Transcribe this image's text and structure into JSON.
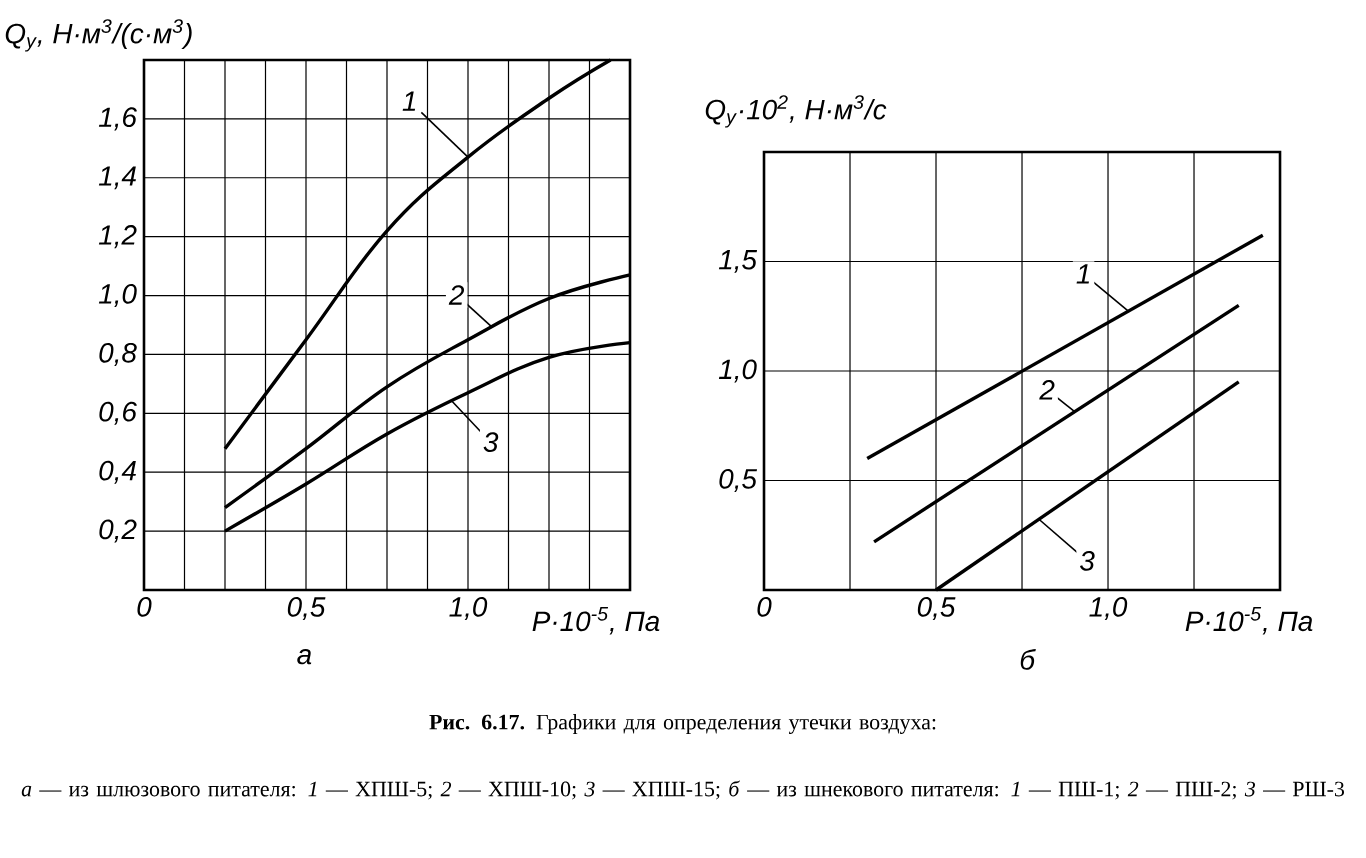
{
  "chart_data": [
    {
      "type": "line",
      "ylabel": "Q$_{у}$, Н·м$^{3}$/(с·м$^{3}$)",
      "xlabel": "P·10$^{-5}$, Па",
      "subtitle": "а",
      "xlim": [
        0,
        1.5
      ],
      "ylim": [
        0,
        1.8
      ],
      "grid": true,
      "xticks": [
        0,
        {
          "value": 0.125,
          "label": null
        },
        {
          "value": 0.25,
          "label": null
        },
        {
          "value": 0.375,
          "label": null
        },
        {
          "value": 0.5,
          "label": "0,5"
        },
        {
          "value": 0.625,
          "label": null
        },
        {
          "value": 0.75,
          "label": null
        },
        {
          "value": 0.875,
          "label": null
        },
        {
          "value": 1.0,
          "label": "1,0"
        },
        {
          "value": 1.125,
          "label": null
        },
        {
          "value": 1.25,
          "label": null
        },
        {
          "value": 1.375,
          "label": null
        },
        {
          "value": 1.5,
          "label": null
        }
      ],
      "yticks": [
        {
          "value": 0,
          "label": null
        },
        {
          "value": 0.2,
          "label": "0,2"
        },
        {
          "value": 0.4,
          "label": "0,4"
        },
        {
          "value": 0.6,
          "label": "0,6"
        },
        {
          "value": 0.8,
          "label": "0,8"
        },
        {
          "value": 1.0,
          "label": "1,0"
        },
        {
          "value": 1.2,
          "label": "1,2"
        },
        {
          "value": 1.4,
          "label": "1,4"
        },
        {
          "value": 1.6,
          "label": "1,6"
        },
        {
          "value": 1.8,
          "label": null
        }
      ],
      "series": [
        {
          "name": "1",
          "color": "#000000",
          "x": [
            0.25,
            0.5,
            0.75,
            1.0,
            1.25,
            1.44
          ],
          "values": [
            0.48,
            0.85,
            1.22,
            1.47,
            1.67,
            1.8
          ]
        },
        {
          "name": "2",
          "color": "#000000",
          "x": [
            0.25,
            0.5,
            0.75,
            1.0,
            1.25,
            1.5
          ],
          "values": [
            0.28,
            0.48,
            0.69,
            0.85,
            0.99,
            1.07
          ]
        },
        {
          "name": "3",
          "color": "#000000",
          "x": [
            0.25,
            0.5,
            0.75,
            1.0,
            1.25,
            1.5
          ],
          "values": [
            0.2,
            0.36,
            0.53,
            0.67,
            0.79,
            0.84
          ]
        }
      ],
      "annotations": [
        "**Рис. 6.17.** Графики для определения утечки воздуха:",
        "*а* — из шлюзового питателя: *1* — ХПШ-5; *2* — ХПШ-10; *3* — ХПШ-15; *б* — из шнекового питателя: *1* — ПШ-1; *2* — ПШ-2; *3* — РШ-3"
      ]
    },
    {
      "type": "line",
      "ylabel": "Q$_{у}$·10$^{2}$, Н·м$^{3}$/с",
      "xlabel": "P·10$^{-5}$, Па",
      "subtitle": "б",
      "xlim": [
        0,
        1.5
      ],
      "ylim": [
        0,
        2.0
      ],
      "grid": true,
      "xticks": [
        0,
        {
          "value": 0.25,
          "label": null
        },
        {
          "value": 0.5,
          "label": "0,5"
        },
        {
          "value": 0.75,
          "label": null
        },
        {
          "value": 1.0,
          "label": "1,0"
        },
        {
          "value": 1.25,
          "label": null
        },
        {
          "value": 1.5,
          "label": null
        }
      ],
      "yticks": [
        {
          "value": 0,
          "label": null
        },
        {
          "value": 0.5,
          "label": "0,5"
        },
        {
          "value": 1.0,
          "label": "1,0"
        },
        {
          "value": 1.5,
          "label": "1,5"
        },
        {
          "value": 2.0,
          "label": null
        }
      ],
      "series": [
        {
          "name": "1",
          "color": "#000000",
          "x": [
            0.3,
            1.45
          ],
          "values": [
            0.6,
            1.62
          ]
        },
        {
          "name": "2",
          "color": "#000000",
          "x": [
            0.32,
            1.38
          ],
          "values": [
            0.22,
            1.3
          ]
        },
        {
          "name": "3",
          "color": "#000000",
          "x": [
            0.5,
            1.38
          ],
          "values": [
            0.0,
            0.95
          ]
        }
      ]
    }
  ]
}
